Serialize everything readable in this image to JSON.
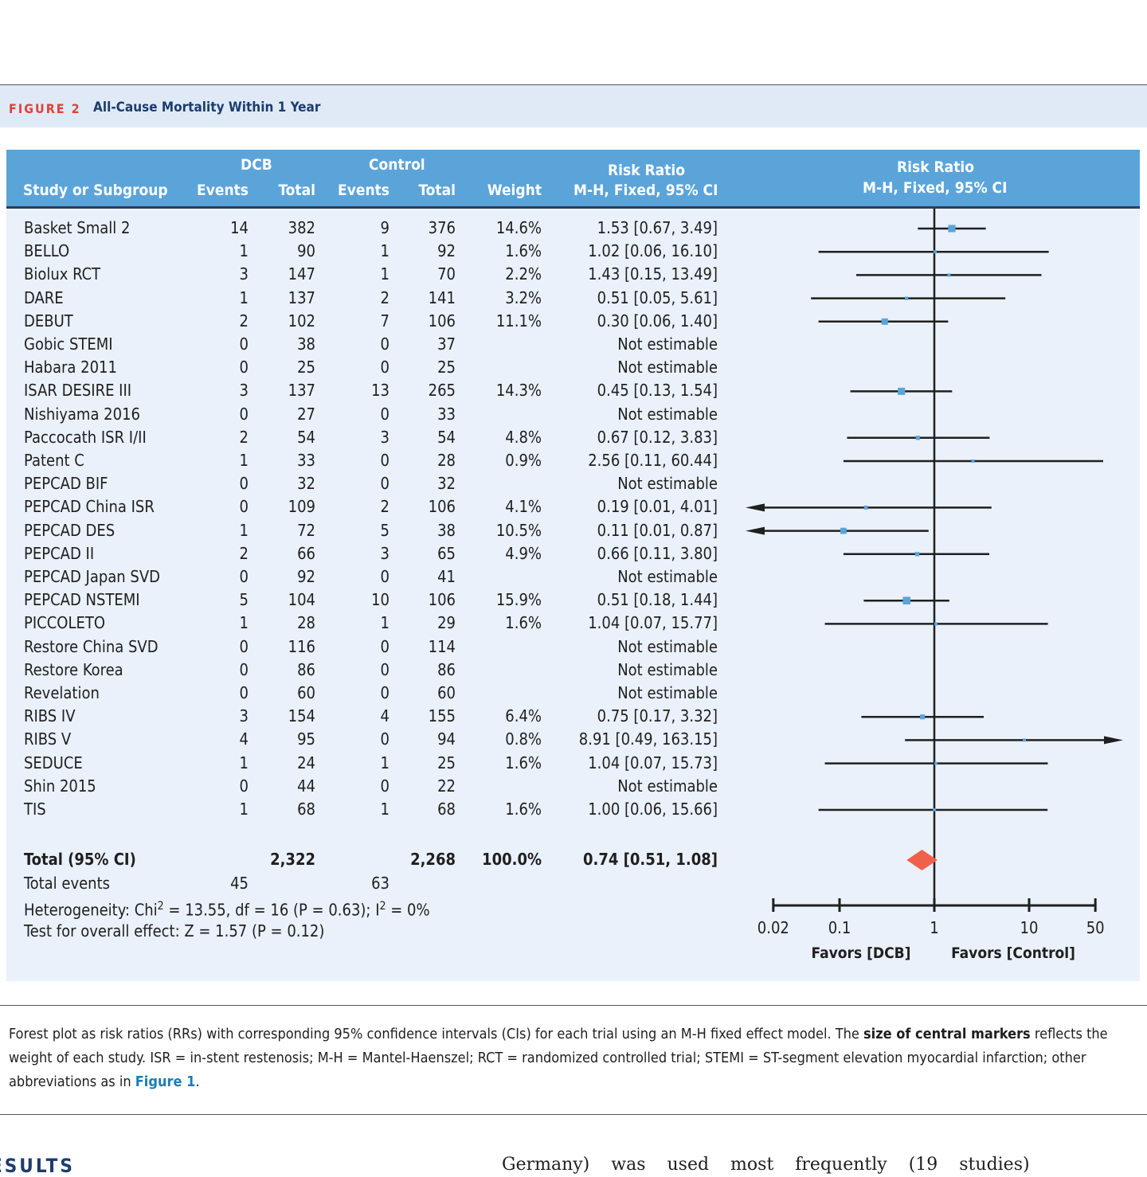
{
  "figure": {
    "label": "FIGURE 2",
    "title": "All-Cause Mortality Within 1 Year"
  },
  "header": {
    "study": "Study or Subgroup",
    "dcb": "DCB",
    "control": "Control",
    "events": "Events",
    "total": "Total",
    "weight": "Weight",
    "rr_col1": "Risk Ratio",
    "rr_col2": "M-H, Fixed, 95% CI",
    "plot_col1": "Risk Ratio",
    "plot_col2": "M-H, Fixed, 95% CI"
  },
  "totals": {
    "label": "Total (95% CI)",
    "dcb_total": "2,322",
    "ctrl_total": "2,268",
    "weight": "100.0%",
    "rr_text": "0.74 [0.51, 1.08]",
    "events_label": "Total events",
    "dcb_events": "45",
    "ctrl_events": "63",
    "heterogeneity_pre": "Heterogeneity: Chi",
    "heterogeneity_mid": " = 13.55, df = 16 (P = 0.63); I",
    "heterogeneity_post": " = 0%",
    "sup": "2",
    "overall": "Test for overall effect: Z = 1.57 (P = 0.12)"
  },
  "caption": {
    "text1": "Forest plot as risk ratios (RRs) with corresponding 95% confidence intervals (CIs) for each trial using an M-H fixed effect model. The ",
    "bold": "size of central markers",
    "text2": " reflects the weight of each study. ISR = in-stent restenosis; M-H = Mantel-Haenszel; RCT = randomized controlled trial; STEMI = ST-segment elevation myocardial infarction; other abbreviations as in ",
    "link": "Figure 1",
    "text3": "."
  },
  "body": {
    "heading": "ESULTS",
    "text": "Germany) was used most frequently (19 studies)"
  },
  "chart_data": {
    "type": "forest",
    "x_scale": "log",
    "xlim": [
      0.02,
      50
    ],
    "x_ticks": [
      "0.02",
      "0.1",
      "1",
      "10",
      "50"
    ],
    "x_tick_values": [
      0.02,
      0.1,
      1,
      10,
      50
    ],
    "left_label": "Favors [DCB]",
    "right_label": "Favors [Control]",
    "colors": {
      "marker": "#5ba4da",
      "diamond": "#f0604a",
      "line": "#1f1f1f"
    },
    "studies": [
      {
        "study": "Basket Small 2",
        "dcb_e": "14",
        "dcb_t": "382",
        "ctl_e": "9",
        "ctl_t": "376",
        "weight": "14.6%",
        "rr_text": "1.53 [0.67, 3.49]",
        "rr": 1.53,
        "lo": 0.67,
        "hi": 3.49
      },
      {
        "study": "BELLO",
        "dcb_e": "1",
        "dcb_t": "90",
        "ctl_e": "1",
        "ctl_t": "92",
        "weight": "1.6%",
        "rr_text": "1.02 [0.06, 16.10]",
        "rr": 1.02,
        "lo": 0.06,
        "hi": 16.1
      },
      {
        "study": "Biolux RCT",
        "dcb_e": "3",
        "dcb_t": "147",
        "ctl_e": "1",
        "ctl_t": "70",
        "weight": "2.2%",
        "rr_text": "1.43 [0.15, 13.49]",
        "rr": 1.43,
        "lo": 0.15,
        "hi": 13.49
      },
      {
        "study": "DARE",
        "dcb_e": "1",
        "dcb_t": "137",
        "ctl_e": "2",
        "ctl_t": "141",
        "weight": "3.2%",
        "rr_text": "0.51 [0.05, 5.61]",
        "rr": 0.51,
        "lo": 0.05,
        "hi": 5.61
      },
      {
        "study": "DEBUT",
        "dcb_e": "2",
        "dcb_t": "102",
        "ctl_e": "7",
        "ctl_t": "106",
        "weight": "11.1%",
        "rr_text": "0.30 [0.06, 1.40]",
        "rr": 0.3,
        "lo": 0.06,
        "hi": 1.4
      },
      {
        "study": "Gobic STEMI",
        "dcb_e": "0",
        "dcb_t": "38",
        "ctl_e": "0",
        "ctl_t": "37",
        "weight": "",
        "rr_text": "Not estimable"
      },
      {
        "study": "Habara 2011",
        "dcb_e": "0",
        "dcb_t": "25",
        "ctl_e": "0",
        "ctl_t": "25",
        "weight": "",
        "rr_text": "Not estimable"
      },
      {
        "study": "ISAR DESIRE III",
        "dcb_e": "3",
        "dcb_t": "137",
        "ctl_e": "13",
        "ctl_t": "265",
        "weight": "14.3%",
        "rr_text": "0.45 [0.13, 1.54]",
        "rr": 0.45,
        "lo": 0.13,
        "hi": 1.54
      },
      {
        "study": "Nishiyama 2016",
        "dcb_e": "0",
        "dcb_t": "27",
        "ctl_e": "0",
        "ctl_t": "33",
        "weight": "",
        "rr_text": "Not estimable"
      },
      {
        "study": "Paccocath ISR I/II",
        "dcb_e": "2",
        "dcb_t": "54",
        "ctl_e": "3",
        "ctl_t": "54",
        "weight": "4.8%",
        "rr_text": "0.67 [0.12, 3.83]",
        "rr": 0.67,
        "lo": 0.12,
        "hi": 3.83
      },
      {
        "study": "Patent C",
        "dcb_e": "1",
        "dcb_t": "33",
        "ctl_e": "0",
        "ctl_t": "28",
        "weight": "0.9%",
        "rr_text": "2.56 [0.11, 60.44]",
        "rr": 2.56,
        "lo": 0.11,
        "hi": 60.44
      },
      {
        "study": "PEPCAD BIF",
        "dcb_e": "0",
        "dcb_t": "32",
        "ctl_e": "0",
        "ctl_t": "32",
        "weight": "",
        "rr_text": "Not estimable"
      },
      {
        "study": "PEPCAD China ISR",
        "dcb_e": "0",
        "dcb_t": "109",
        "ctl_e": "2",
        "ctl_t": "106",
        "weight": "4.1%",
        "rr_text": "0.19 [0.01, 4.01]",
        "rr": 0.19,
        "lo": 0.01,
        "hi": 4.01
      },
      {
        "study": "PEPCAD DES",
        "dcb_e": "1",
        "dcb_t": "72",
        "ctl_e": "5",
        "ctl_t": "38",
        "weight": "10.5%",
        "rr_text": "0.11 [0.01, 0.87]",
        "rr": 0.11,
        "lo": 0.01,
        "hi": 0.87
      },
      {
        "study": "PEPCAD II",
        "dcb_e": "2",
        "dcb_t": "66",
        "ctl_e": "3",
        "ctl_t": "65",
        "weight": "4.9%",
        "rr_text": "0.66 [0.11, 3.80]",
        "rr": 0.66,
        "lo": 0.11,
        "hi": 3.8
      },
      {
        "study": "PEPCAD Japan SVD",
        "dcb_e": "0",
        "dcb_t": "92",
        "ctl_e": "0",
        "ctl_t": "41",
        "weight": "",
        "rr_text": "Not estimable"
      },
      {
        "study": "PEPCAD NSTEMI",
        "dcb_e": "5",
        "dcb_t": "104",
        "ctl_e": "10",
        "ctl_t": "106",
        "weight": "15.9%",
        "rr_text": "0.51 [0.18, 1.44]",
        "rr": 0.51,
        "lo": 0.18,
        "hi": 1.44
      },
      {
        "study": "PICCOLETO",
        "dcb_e": "1",
        "dcb_t": "28",
        "ctl_e": "1",
        "ctl_t": "29",
        "weight": "1.6%",
        "rr_text": "1.04 [0.07, 15.77]",
        "rr": 1.04,
        "lo": 0.07,
        "hi": 15.77
      },
      {
        "study": "Restore China SVD",
        "dcb_e": "0",
        "dcb_t": "116",
        "ctl_e": "0",
        "ctl_t": "114",
        "weight": "",
        "rr_text": "Not estimable"
      },
      {
        "study": "Restore Korea",
        "dcb_e": "0",
        "dcb_t": "86",
        "ctl_e": "0",
        "ctl_t": "86",
        "weight": "",
        "rr_text": "Not estimable"
      },
      {
        "study": "Revelation",
        "dcb_e": "0",
        "dcb_t": "60",
        "ctl_e": "0",
        "ctl_t": "60",
        "weight": "",
        "rr_text": "Not estimable"
      },
      {
        "study": "RIBS IV",
        "dcb_e": "3",
        "dcb_t": "154",
        "ctl_e": "4",
        "ctl_t": "155",
        "weight": "6.4%",
        "rr_text": "0.75 [0.17, 3.32]",
        "rr": 0.75,
        "lo": 0.17,
        "hi": 3.32
      },
      {
        "study": "RIBS V",
        "dcb_e": "4",
        "dcb_t": "95",
        "ctl_e": "0",
        "ctl_t": "94",
        "weight": "0.8%",
        "rr_text": "8.91 [0.49, 163.15]",
        "rr": 8.91,
        "lo": 0.49,
        "hi": 163.15
      },
      {
        "study": "SEDUCE",
        "dcb_e": "1",
        "dcb_t": "24",
        "ctl_e": "1",
        "ctl_t": "25",
        "weight": "1.6%",
        "rr_text": "1.04 [0.07, 15.73]",
        "rr": 1.04,
        "lo": 0.07,
        "hi": 15.73
      },
      {
        "study": "Shin 2015",
        "dcb_e": "0",
        "dcb_t": "44",
        "ctl_e": "0",
        "ctl_t": "22",
        "weight": "",
        "rr_text": "Not estimable"
      },
      {
        "study": "TIS",
        "dcb_e": "1",
        "dcb_t": "68",
        "ctl_e": "1",
        "ctl_t": "68",
        "weight": "1.6%",
        "rr_text": "1.00 [0.06, 15.66]",
        "rr": 1.0,
        "lo": 0.06,
        "hi": 15.66
      }
    ],
    "pooled": {
      "rr": 0.74,
      "lo": 0.51,
      "hi": 1.08
    }
  }
}
